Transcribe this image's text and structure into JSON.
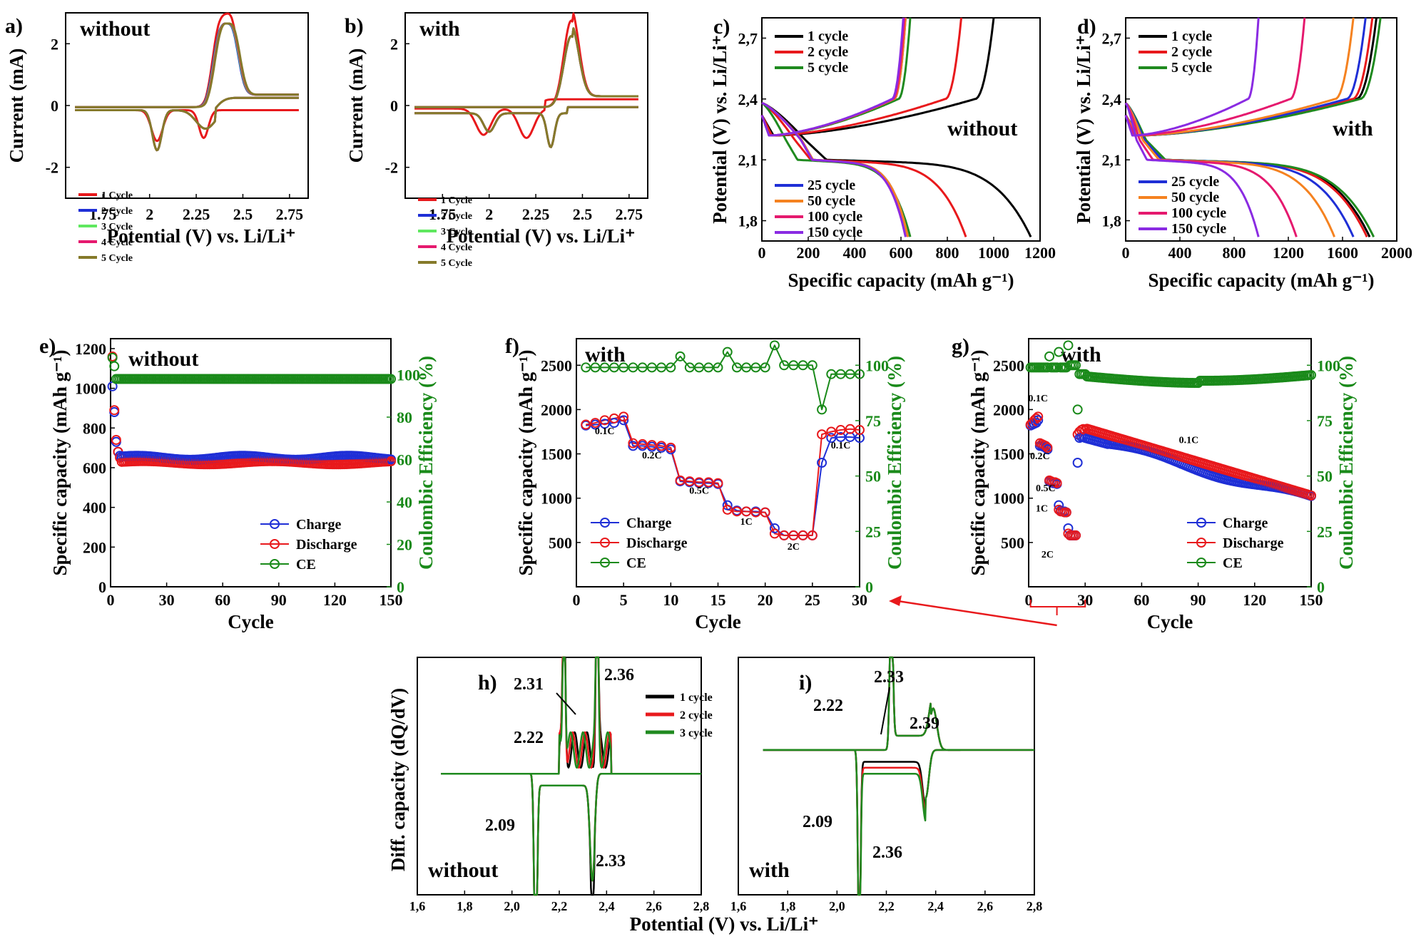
{
  "colors": {
    "red": "#e8191c",
    "blue": "#1f2fd6",
    "green": "#1f8a1f",
    "black": "#000000",
    "orange": "#f58220",
    "pink": "#e5196e",
    "purple": "#8a2be2",
    "lightgreen": "#5fe85f",
    "olive": "#857a2a",
    "ce_green": "#1a8a1a"
  },
  "chart_data": [
    {
      "id": "a",
      "type": "line",
      "panel_label": "a)",
      "condition": "without",
      "xlabel": "Potential (V) vs. Li/Li⁺",
      "ylabel": "Current (mA)",
      "xlim": [
        1.55,
        2.85
      ],
      "ylim": [
        -3,
        3
      ],
      "xticks": [
        "1.75",
        "2",
        "2.25",
        "2.5",
        "2.75"
      ],
      "yticks": [
        "-2",
        "0",
        "2"
      ],
      "series": [
        {
          "name": "1 Cycle",
          "color": "red"
        },
        {
          "name": "2 Cycle",
          "color": "blue"
        },
        {
          "name": "3 Cycle",
          "color": "lightgreen"
        },
        {
          "name": "4 Cycle",
          "color": "pink"
        },
        {
          "name": "5 Cycle",
          "color": "olive"
        }
      ]
    },
    {
      "id": "b",
      "type": "line",
      "panel_label": "b)",
      "condition": "with",
      "xlabel": "Potential (V) vs. Li/Li⁺",
      "ylabel": "Current (mA)",
      "xlim": [
        1.55,
        2.85
      ],
      "ylim": [
        -3,
        3
      ],
      "xticks": [
        "1.75",
        "2",
        "2.25",
        "2.5",
        "2.75"
      ],
      "yticks": [
        "-2",
        "0",
        "2"
      ],
      "series": [
        {
          "name": "1 Cycle",
          "color": "red"
        },
        {
          "name": "2 Cycle",
          "color": "blue"
        },
        {
          "name": "3 Cycle",
          "color": "lightgreen"
        },
        {
          "name": "4 Cycle",
          "color": "pink"
        },
        {
          "name": "5 Cycle",
          "color": "olive"
        }
      ]
    },
    {
      "id": "c",
      "type": "line",
      "panel_label": "c)",
      "condition": "without",
      "xlabel": "Specific capacity (mAh g⁻¹)",
      "ylabel": "Potential (V) vs. Li/Li⁺",
      "xlim": [
        0,
        1200
      ],
      "ylim": [
        1.7,
        2.8
      ],
      "xticks": [
        "0",
        "200",
        "400",
        "600",
        "800",
        "1000",
        "1200"
      ],
      "yticks": [
        "1,8",
        "2,1",
        "2,4",
        "2,7"
      ],
      "series": [
        {
          "name": "1 cycle",
          "color": "black",
          "discharge_end": 1160,
          "charge_end": 1000
        },
        {
          "name": "2 cycle",
          "color": "red",
          "discharge_end": 880,
          "charge_end": 860
        },
        {
          "name": "5 cycle",
          "color": "green",
          "discharge_end": 640,
          "charge_end": 640
        },
        {
          "name": "25 cycle",
          "color": "blue",
          "discharge_end": 630,
          "charge_end": 620
        },
        {
          "name": "50 cycle",
          "color": "orange",
          "discharge_end": 630,
          "charge_end": 620
        },
        {
          "name": "100 cycle",
          "color": "pink",
          "discharge_end": 620,
          "charge_end": 615
        },
        {
          "name": "150 cycle",
          "color": "purple",
          "discharge_end": 620,
          "charge_end": 610
        }
      ]
    },
    {
      "id": "d",
      "type": "line",
      "panel_label": "d)",
      "condition": "with",
      "xlabel": "Specific capacity (mAh g⁻¹)",
      "ylabel": "Potential (V) vs. Li/Li⁺",
      "xlim": [
        0,
        2000
      ],
      "ylim": [
        1.7,
        2.8
      ],
      "xticks": [
        "0",
        "400",
        "800",
        "1200",
        "1600",
        "2000"
      ],
      "yticks": [
        "1,8",
        "2,1",
        "2,4",
        "2,7"
      ],
      "series": [
        {
          "name": "1 cycle",
          "color": "black",
          "discharge_end": 1800,
          "charge_end": 1850
        },
        {
          "name": "2 cycle",
          "color": "red",
          "discharge_end": 1780,
          "charge_end": 1820
        },
        {
          "name": "5 cycle",
          "color": "green",
          "discharge_end": 1830,
          "charge_end": 1880
        },
        {
          "name": "25 cycle",
          "color": "blue",
          "discharge_end": 1680,
          "charge_end": 1770
        },
        {
          "name": "50 cycle",
          "color": "orange",
          "discharge_end": 1540,
          "charge_end": 1680
        },
        {
          "name": "100 cycle",
          "color": "pink",
          "discharge_end": 1260,
          "charge_end": 1320
        },
        {
          "name": "150 cycle",
          "color": "purple",
          "discharge_end": 980,
          "charge_end": 980
        }
      ]
    },
    {
      "id": "e",
      "type": "scatter",
      "panel_label": "e)",
      "condition": "without",
      "xlabel": "Cycle",
      "ylabel": "Specific capacity (mAh g⁻¹)",
      "y2label": "Coulombic Efficiency (%)",
      "xlim": [
        0,
        150
      ],
      "ylim": [
        0,
        1250
      ],
      "y2lim": [
        0,
        117
      ],
      "xticks": [
        "0",
        "30",
        "60",
        "90",
        "120",
        "150"
      ],
      "yticks": [
        "0",
        "200",
        "400",
        "600",
        "800",
        "1000",
        "1200"
      ],
      "y2ticks": [
        "0",
        "20",
        "40",
        "60",
        "80",
        "100"
      ],
      "legend": [
        "Charge",
        "Discharge",
        "CE"
      ],
      "charge_first": [
        1010,
        880,
        730,
        680,
        660
      ],
      "discharge_first": [
        1160,
        890,
        740,
        680,
        650
      ],
      "charge_plateau": 650,
      "discharge_plateau": 625,
      "ce_plateau": 98
    },
    {
      "id": "f",
      "type": "scatter",
      "panel_label": "f)",
      "condition": "with",
      "xlabel": "Cycle",
      "ylabel": "Specific capacity (mAh g⁻¹)",
      "y2label": "Coulombic Efficiency (%)",
      "xlim": [
        0,
        30
      ],
      "ylim": [
        0,
        2800
      ],
      "y2lim": [
        0,
        112
      ],
      "xticks": [
        "0",
        "5",
        "10",
        "15",
        "20",
        "25",
        "30"
      ],
      "yticks": [
        "500",
        "1000",
        "1500",
        "2000",
        "2500"
      ],
      "y2ticks": [
        "0",
        "25",
        "50",
        "75",
        "100"
      ],
      "legend": [
        "Charge",
        "Discharge",
        "CE"
      ],
      "rate_labels": [
        "0.1C",
        "0.2C",
        "0.5C",
        "1C",
        "2C",
        "0.1C"
      ],
      "charge": [
        1820,
        1830,
        1840,
        1850,
        1880,
        1590,
        1590,
        1580,
        1570,
        1550,
        1190,
        1180,
        1170,
        1170,
        1160,
        920,
        860,
        850,
        850,
        840,
        660,
        580,
        580,
        580,
        580,
        1400,
        1680,
        1690,
        1690,
        1680
      ],
      "discharge": [
        1830,
        1850,
        1880,
        1900,
        1920,
        1620,
        1610,
        1600,
        1590,
        1570,
        1200,
        1190,
        1180,
        1180,
        1170,
        870,
        850,
        850,
        840,
        840,
        600,
        580,
        580,
        580,
        580,
        1720,
        1750,
        1770,
        1780,
        1770
      ],
      "ce": [
        99,
        99,
        99,
        99,
        99,
        99,
        99,
        99,
        99,
        99,
        104,
        99,
        99,
        99,
        99,
        106,
        99,
        99,
        99,
        99,
        109,
        100,
        100,
        100,
        100,
        80,
        96,
        96,
        96,
        96
      ]
    },
    {
      "id": "g",
      "type": "scatter",
      "panel_label": "g)",
      "condition": "with",
      "xlabel": "Cycle",
      "ylabel": "Specific capacity (mAh g⁻¹)",
      "y2label": "Coulombic Efficiency (%)",
      "xlim": [
        0,
        150
      ],
      "ylim": [
        0,
        2800
      ],
      "y2lim": [
        0,
        112
      ],
      "xticks": [
        "0",
        "30",
        "60",
        "90",
        "120",
        "150"
      ],
      "yticks": [
        "500",
        "1000",
        "1500",
        "2000",
        "2500"
      ],
      "y2ticks": [
        "0",
        "25",
        "50",
        "75",
        "100"
      ],
      "legend": [
        "Charge",
        "Discharge",
        "CE"
      ],
      "rate_labels": [
        "0.1C",
        "0.2C",
        "0.5C",
        "1C",
        "2C",
        "0.1C"
      ],
      "charge_end": 990,
      "discharge_end": 1030,
      "charge_start": 1680,
      "discharge_start": 1790,
      "ce_plateau": 95
    },
    {
      "id": "h",
      "type": "line",
      "panel_label": "h)",
      "condition": "without",
      "xlabel": "Potential (V) vs. Li/Li⁺",
      "ylabel": "Diff. capacity (dQ/dV)",
      "xlim": [
        1.6,
        2.8
      ],
      "xticks": [
        "1,6",
        "1,8",
        "2,0",
        "2,2",
        "2,4",
        "2,6",
        "2,8"
      ],
      "annotations": [
        "2.31",
        "2.36",
        "2.22",
        "2.09",
        "2.33"
      ],
      "series": [
        {
          "name": "1 cycle",
          "color": "black"
        },
        {
          "name": "2 cycle",
          "color": "red"
        },
        {
          "name": "3 cycle",
          "color": "green"
        }
      ]
    },
    {
      "id": "i",
      "type": "line",
      "panel_label": "i)",
      "condition": "with",
      "xlabel": "Potential (V) vs. Li/Li⁺",
      "ylabel": "",
      "xlim": [
        1.6,
        2.8
      ],
      "xticks": [
        "1,6",
        "1,8",
        "2,0",
        "2,2",
        "2,4",
        "2,6",
        "2,8"
      ],
      "annotations": [
        "2.33",
        "2.22",
        "2.39",
        "2.09",
        "2.36"
      ],
      "series": [
        {
          "name": "1 cycle",
          "color": "black"
        },
        {
          "name": "2 cycle",
          "color": "red"
        },
        {
          "name": "3 cycle",
          "color": "green"
        }
      ]
    }
  ]
}
